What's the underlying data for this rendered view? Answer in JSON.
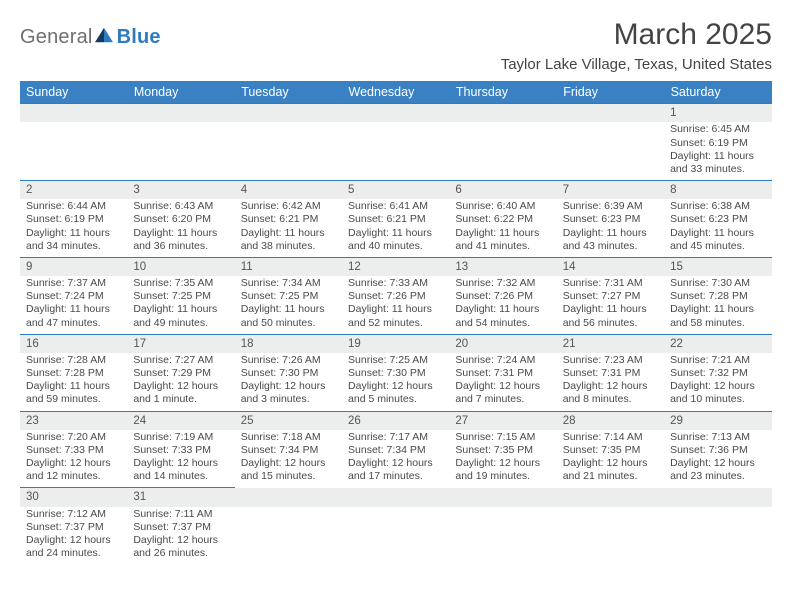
{
  "meta": {
    "title": "March 2025",
    "location": "Taylor Lake Village, Texas, United States",
    "logo": {
      "word1": "General",
      "word2": "Blue",
      "word1_color": "#6f6f6f",
      "word2_color": "#2f7bbf"
    }
  },
  "style": {
    "header_bg": "#3a81c4",
    "header_fg": "#ffffff",
    "rule_color": "#2f7bbf",
    "daynum_bg": "#eceded",
    "body_bg": "#ffffff",
    "text_color": "#4a4a4a",
    "title_fontsize": 30,
    "subtitle_fontsize": 15,
    "header_fontsize": 12.5,
    "daynum_fontsize": 11.5,
    "cell_fontsize": 10.5
  },
  "columns": [
    "Sunday",
    "Monday",
    "Tuesday",
    "Wednesday",
    "Thursday",
    "Friday",
    "Saturday"
  ],
  "weeks": [
    [
      null,
      null,
      null,
      null,
      null,
      null,
      {
        "n": "1",
        "sunrise": "6:45 AM",
        "sunset": "6:19 PM",
        "daylight": "11 hours and 33 minutes."
      }
    ],
    [
      {
        "n": "2",
        "sunrise": "6:44 AM",
        "sunset": "6:19 PM",
        "daylight": "11 hours and 34 minutes."
      },
      {
        "n": "3",
        "sunrise": "6:43 AM",
        "sunset": "6:20 PM",
        "daylight": "11 hours and 36 minutes."
      },
      {
        "n": "4",
        "sunrise": "6:42 AM",
        "sunset": "6:21 PM",
        "daylight": "11 hours and 38 minutes."
      },
      {
        "n": "5",
        "sunrise": "6:41 AM",
        "sunset": "6:21 PM",
        "daylight": "11 hours and 40 minutes."
      },
      {
        "n": "6",
        "sunrise": "6:40 AM",
        "sunset": "6:22 PM",
        "daylight": "11 hours and 41 minutes."
      },
      {
        "n": "7",
        "sunrise": "6:39 AM",
        "sunset": "6:23 PM",
        "daylight": "11 hours and 43 minutes."
      },
      {
        "n": "8",
        "sunrise": "6:38 AM",
        "sunset": "6:23 PM",
        "daylight": "11 hours and 45 minutes."
      }
    ],
    [
      {
        "n": "9",
        "sunrise": "7:37 AM",
        "sunset": "7:24 PM",
        "daylight": "11 hours and 47 minutes."
      },
      {
        "n": "10",
        "sunrise": "7:35 AM",
        "sunset": "7:25 PM",
        "daylight": "11 hours and 49 minutes."
      },
      {
        "n": "11",
        "sunrise": "7:34 AM",
        "sunset": "7:25 PM",
        "daylight": "11 hours and 50 minutes."
      },
      {
        "n": "12",
        "sunrise": "7:33 AM",
        "sunset": "7:26 PM",
        "daylight": "11 hours and 52 minutes."
      },
      {
        "n": "13",
        "sunrise": "7:32 AM",
        "sunset": "7:26 PM",
        "daylight": "11 hours and 54 minutes."
      },
      {
        "n": "14",
        "sunrise": "7:31 AM",
        "sunset": "7:27 PM",
        "daylight": "11 hours and 56 minutes."
      },
      {
        "n": "15",
        "sunrise": "7:30 AM",
        "sunset": "7:28 PM",
        "daylight": "11 hours and 58 minutes."
      }
    ],
    [
      {
        "n": "16",
        "sunrise": "7:28 AM",
        "sunset": "7:28 PM",
        "daylight": "11 hours and 59 minutes."
      },
      {
        "n": "17",
        "sunrise": "7:27 AM",
        "sunset": "7:29 PM",
        "daylight": "12 hours and 1 minute."
      },
      {
        "n": "18",
        "sunrise": "7:26 AM",
        "sunset": "7:30 PM",
        "daylight": "12 hours and 3 minutes."
      },
      {
        "n": "19",
        "sunrise": "7:25 AM",
        "sunset": "7:30 PM",
        "daylight": "12 hours and 5 minutes."
      },
      {
        "n": "20",
        "sunrise": "7:24 AM",
        "sunset": "7:31 PM",
        "daylight": "12 hours and 7 minutes."
      },
      {
        "n": "21",
        "sunrise": "7:23 AM",
        "sunset": "7:31 PM",
        "daylight": "12 hours and 8 minutes."
      },
      {
        "n": "22",
        "sunrise": "7:21 AM",
        "sunset": "7:32 PM",
        "daylight": "12 hours and 10 minutes."
      }
    ],
    [
      {
        "n": "23",
        "sunrise": "7:20 AM",
        "sunset": "7:33 PM",
        "daylight": "12 hours and 12 minutes."
      },
      {
        "n": "24",
        "sunrise": "7:19 AM",
        "sunset": "7:33 PM",
        "daylight": "12 hours and 14 minutes."
      },
      {
        "n": "25",
        "sunrise": "7:18 AM",
        "sunset": "7:34 PM",
        "daylight": "12 hours and 15 minutes."
      },
      {
        "n": "26",
        "sunrise": "7:17 AM",
        "sunset": "7:34 PM",
        "daylight": "12 hours and 17 minutes."
      },
      {
        "n": "27",
        "sunrise": "7:15 AM",
        "sunset": "7:35 PM",
        "daylight": "12 hours and 19 minutes."
      },
      {
        "n": "28",
        "sunrise": "7:14 AM",
        "sunset": "7:35 PM",
        "daylight": "12 hours and 21 minutes."
      },
      {
        "n": "29",
        "sunrise": "7:13 AM",
        "sunset": "7:36 PM",
        "daylight": "12 hours and 23 minutes."
      }
    ],
    [
      {
        "n": "30",
        "sunrise": "7:12 AM",
        "sunset": "7:37 PM",
        "daylight": "12 hours and 24 minutes."
      },
      {
        "n": "31",
        "sunrise": "7:11 AM",
        "sunset": "7:37 PM",
        "daylight": "12 hours and 26 minutes."
      },
      null,
      null,
      null,
      null,
      null
    ]
  ],
  "labels": {
    "sunrise": "Sunrise:",
    "sunset": "Sunset:",
    "daylight": "Daylight:"
  }
}
